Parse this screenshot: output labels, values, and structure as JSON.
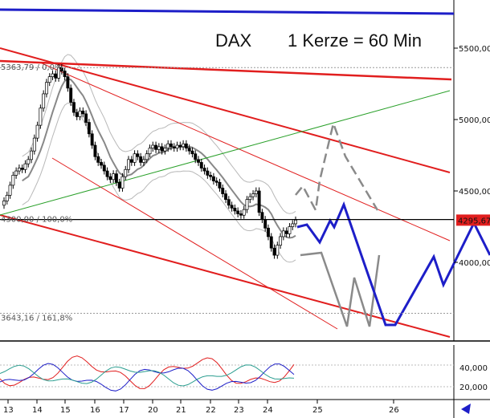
{
  "chart_data": {
    "type": "candlestick",
    "instrument": "DAX",
    "interval_label": "1 Kerze = 60 Min",
    "title_left": "DAX",
    "title_right": "1 Kerze = 60 Min",
    "y_axis_ticks": [
      "5500,00",
      "5000,00",
      "4500,00",
      "4000,00"
    ],
    "y_range": [
      3530,
      5820
    ],
    "x_ticks": [
      "13",
      "14",
      "15",
      "16",
      "17",
      "20",
      "21",
      "22",
      "23",
      "24",
      "25",
      "26"
    ],
    "last_price_label": "4295,67",
    "fib_levels": [
      {
        "label": "5363,79 / 0,0%",
        "value": 5363.79
      },
      {
        "label": "4300,00 / 100,0%",
        "value": 4300.0
      },
      {
        "label": "3643,16 / 161,8%",
        "value": 3643.16
      }
    ],
    "indicator_ticks": [
      "40,000",
      "20,000"
    ],
    "colors": {
      "up": "#ffffff",
      "down": "#000000",
      "ma": "#888888",
      "bands": "#b8b8b8",
      "trend_red": "#e11e1e",
      "trend_green": "#2aa02a",
      "blue_path": "#1d1ec8",
      "gray_path": "#8a8a8a",
      "osc_red": "#e11e1e",
      "osc_blue": "#1d1ec8",
      "osc_teal": "#2a9d8f"
    }
  }
}
